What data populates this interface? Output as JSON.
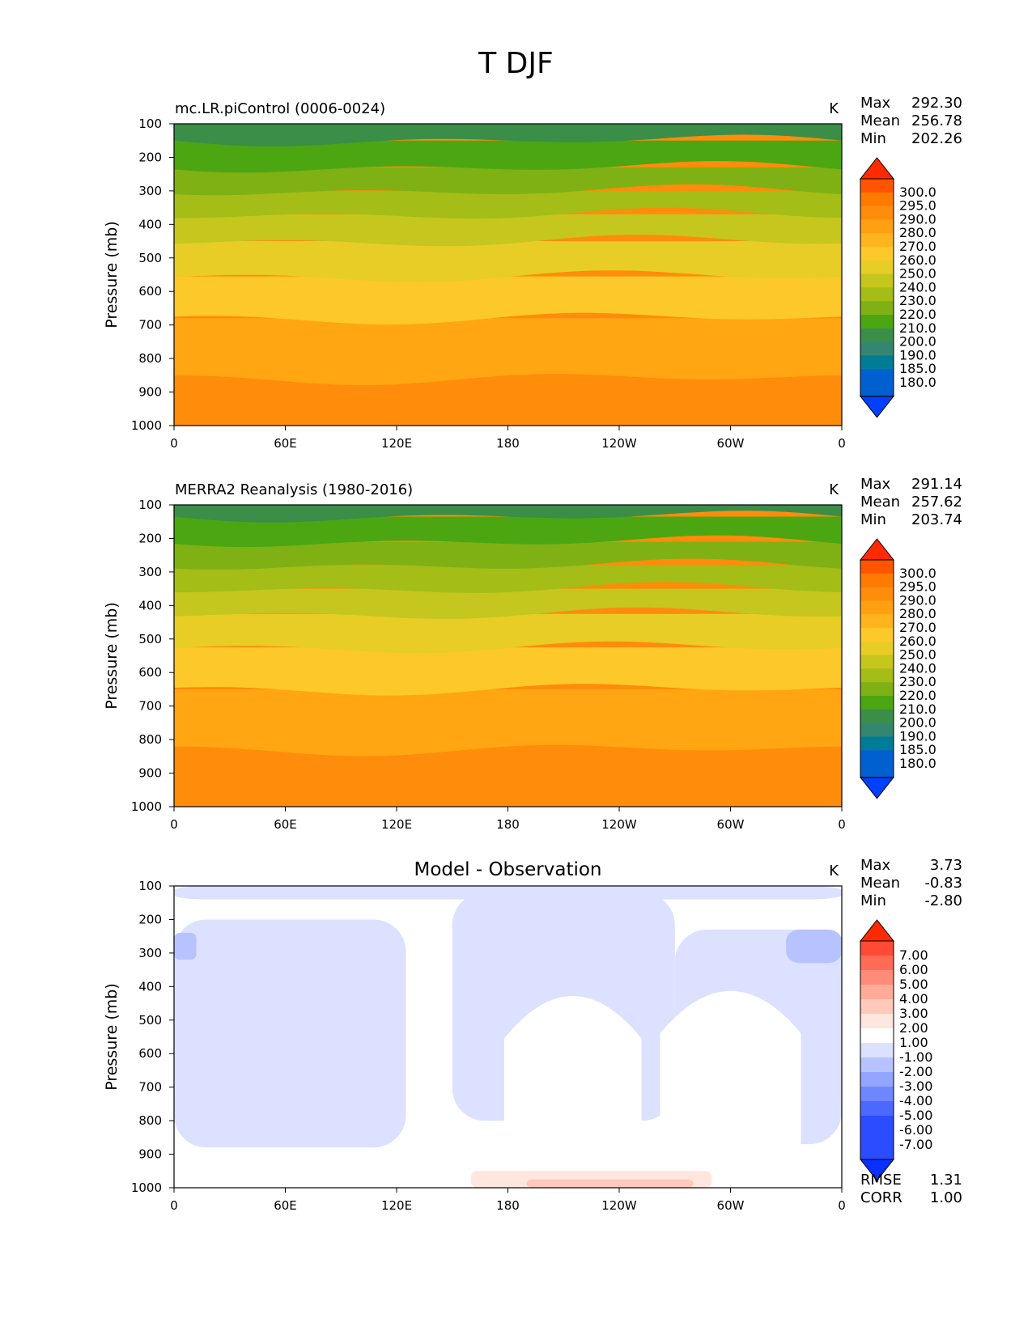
{
  "figure": {
    "title": "T DJF"
  },
  "chart_data": [
    {
      "type": "contour",
      "title": "mc.LR.piControl (0006-0024)",
      "units": "K",
      "ylabel": "Pressure (mb)",
      "xlabel": "",
      "x_ticks": [
        "0",
        "60E",
        "120E",
        "180",
        "120W",
        "60W",
        "0"
      ],
      "y_ticks": [
        "100",
        "200",
        "300",
        "400",
        "500",
        "600",
        "700",
        "800",
        "900",
        "1000"
      ],
      "ylim": [
        1000,
        100
      ],
      "xlim": [
        0,
        360
      ],
      "stats": [
        {
          "label": "Max",
          "value": "292.30"
        },
        {
          "label": "Mean",
          "value": "256.78"
        },
        {
          "label": "Min",
          "value": "202.26"
        }
      ],
      "colorbar": {
        "levels": [
          "300.0",
          "295.0",
          "290.0",
          "280.0",
          "270.0",
          "260.0",
          "250.0",
          "240.0",
          "230.0",
          "220.0",
          "210.0",
          "200.0",
          "190.0",
          "185.0",
          "180.0"
        ],
        "colors": [
          "#ff2a00",
          "#ff5500",
          "#ff7a00",
          "#ff8c0a",
          "#ffa012",
          "#ffb41e",
          "#fdc829",
          "#e8cd26",
          "#c5c61e",
          "#a4bd17",
          "#7fb114",
          "#4ca612",
          "#3a8e48",
          "#358671",
          "#007d96",
          "#0060d0",
          "#0040ff"
        ]
      },
      "bands": [
        {
          "pressure_top": 100,
          "pressure_bottom": 150,
          "kelvin": 205,
          "color": "#3a8e48"
        },
        {
          "pressure_top": 150,
          "pressure_bottom": 230,
          "kelvin": 215,
          "color": "#4ca612"
        },
        {
          "pressure_top": 230,
          "pressure_bottom": 300,
          "kelvin": 225,
          "color": "#7fb114"
        },
        {
          "pressure_top": 300,
          "pressure_bottom": 370,
          "kelvin": 235,
          "color": "#a4bd17"
        },
        {
          "pressure_top": 370,
          "pressure_bottom": 450,
          "kelvin": 245,
          "color": "#c5c61e"
        },
        {
          "pressure_top": 450,
          "pressure_bottom": 555,
          "kelvin": 255,
          "color": "#e8cd26"
        },
        {
          "pressure_top": 555,
          "pressure_bottom": 680,
          "kelvin": 265,
          "color": "#fdc829"
        },
        {
          "pressure_top": 680,
          "pressure_bottom": 860,
          "kelvin": 275,
          "color": "#ffa612"
        },
        {
          "pressure_top": 860,
          "pressure_bottom": 1000,
          "kelvin": 285,
          "color": "#ff8c0a"
        }
      ]
    },
    {
      "type": "contour",
      "title": "MERRA2 Reanalysis (1980-2016)",
      "units": "K",
      "ylabel": "Pressure (mb)",
      "xlabel": "",
      "x_ticks": [
        "0",
        "60E",
        "120E",
        "180",
        "120W",
        "60W",
        "0"
      ],
      "y_ticks": [
        "100",
        "200",
        "300",
        "400",
        "500",
        "600",
        "700",
        "800",
        "900",
        "1000"
      ],
      "ylim": [
        1000,
        100
      ],
      "xlim": [
        0,
        360
      ],
      "stats": [
        {
          "label": "Max",
          "value": "291.14"
        },
        {
          "label": "Mean",
          "value": "257.62"
        },
        {
          "label": "Min",
          "value": "203.74"
        }
      ],
      "colorbar": {
        "levels": [
          "300.0",
          "295.0",
          "290.0",
          "280.0",
          "270.0",
          "260.0",
          "250.0",
          "240.0",
          "230.0",
          "220.0",
          "210.0",
          "200.0",
          "190.0",
          "185.0",
          "180.0"
        ],
        "colors": [
          "#ff2a00",
          "#ff5500",
          "#ff7a00",
          "#ff8c0a",
          "#ffa012",
          "#ffb41e",
          "#fdc829",
          "#e8cd26",
          "#c5c61e",
          "#a4bd17",
          "#7fb114",
          "#4ca612",
          "#3a8e48",
          "#358671",
          "#007d96",
          "#0060d0",
          "#0040ff"
        ]
      },
      "bands": [
        {
          "pressure_top": 100,
          "pressure_bottom": 135,
          "kelvin": 205,
          "color": "#3a8e48"
        },
        {
          "pressure_top": 135,
          "pressure_bottom": 210,
          "kelvin": 215,
          "color": "#4ca612"
        },
        {
          "pressure_top": 210,
          "pressure_bottom": 280,
          "kelvin": 225,
          "color": "#7fb114"
        },
        {
          "pressure_top": 280,
          "pressure_bottom": 350,
          "kelvin": 235,
          "color": "#a4bd17"
        },
        {
          "pressure_top": 350,
          "pressure_bottom": 425,
          "kelvin": 245,
          "color": "#c5c61e"
        },
        {
          "pressure_top": 425,
          "pressure_bottom": 525,
          "kelvin": 255,
          "color": "#e8cd26"
        },
        {
          "pressure_top": 525,
          "pressure_bottom": 650,
          "kelvin": 265,
          "color": "#fdc829"
        },
        {
          "pressure_top": 650,
          "pressure_bottom": 830,
          "kelvin": 275,
          "color": "#ffa612"
        },
        {
          "pressure_top": 830,
          "pressure_bottom": 1000,
          "kelvin": 285,
          "color": "#ff8c0a"
        }
      ]
    },
    {
      "type": "contour",
      "title": "Model - Observation",
      "units": "K",
      "ylabel": "Pressure (mb)",
      "xlabel": "",
      "x_ticks": [
        "0",
        "60E",
        "120E",
        "180",
        "120W",
        "60W",
        "0"
      ],
      "y_ticks": [
        "100",
        "200",
        "300",
        "400",
        "500",
        "600",
        "700",
        "800",
        "900",
        "1000"
      ],
      "ylim": [
        1000,
        100
      ],
      "xlim": [
        0,
        360
      ],
      "stats": [
        {
          "label": "Max",
          "value": "3.73"
        },
        {
          "label": "Mean",
          "value": "-0.83"
        },
        {
          "label": "Min",
          "value": "-2.80"
        }
      ],
      "metrics": [
        {
          "label": "RMSE",
          "value": "1.31"
        },
        {
          "label": "CORR",
          "value": "1.00"
        }
      ],
      "colorbar": {
        "levels": [
          "7.00",
          "6.00",
          "5.00",
          "4.00",
          "3.00",
          "2.00",
          "1.00",
          "-1.00",
          "-2.00",
          "-3.00",
          "-4.00",
          "-5.00",
          "-6.00",
          "-7.00"
        ],
        "colors": [
          "#ff2a00",
          "#ff4a35",
          "#ff6b55",
          "#ff8c78",
          "#ffab9a",
          "#ffc9bc",
          "#ffe6de",
          "#ffffff",
          "#dbe1fe",
          "#b7c3fe",
          "#93a5fe",
          "#6f87fe",
          "#4b69fe",
          "#2b4cff",
          "#0a30ff"
        ]
      },
      "regions": [
        {
          "name": "upper-cold-band",
          "lon": [
            0,
            360
          ],
          "pressure": [
            100,
            140
          ],
          "anomaly": -1.5,
          "color": "#dbe1fe"
        },
        {
          "name": "west-cold-region",
          "lon": [
            0,
            125
          ],
          "pressure": [
            200,
            880
          ],
          "anomaly": -1.5,
          "color": "#dbe1fe"
        },
        {
          "name": "central-cold-region",
          "lon": [
            150,
            270
          ],
          "pressure": [
            120,
            800
          ],
          "anomaly": -1.5,
          "color": "#dbe1fe"
        },
        {
          "name": "east-cold-region",
          "lon": [
            270,
            360
          ],
          "pressure": [
            230,
            870
          ],
          "anomaly": -1.5,
          "color": "#dbe1fe"
        },
        {
          "name": "west-cold-core",
          "lon": [
            0,
            12
          ],
          "pressure": [
            240,
            320
          ],
          "anomaly": -2.5,
          "color": "#b7c3fe"
        },
        {
          "name": "east-cold-core",
          "lon": [
            330,
            360
          ],
          "pressure": [
            230,
            330
          ],
          "anomaly": -2.5,
          "color": "#b7c3fe"
        },
        {
          "name": "surface-warm-region",
          "lon": [
            160,
            290
          ],
          "pressure": [
            950,
            1000
          ],
          "anomaly": 1.5,
          "color": "#ffe6de"
        },
        {
          "name": "surface-warm-core",
          "lon": [
            190,
            280
          ],
          "pressure": [
            975,
            1000
          ],
          "anomaly": 2.5,
          "color": "#ffc9bc"
        }
      ]
    }
  ]
}
